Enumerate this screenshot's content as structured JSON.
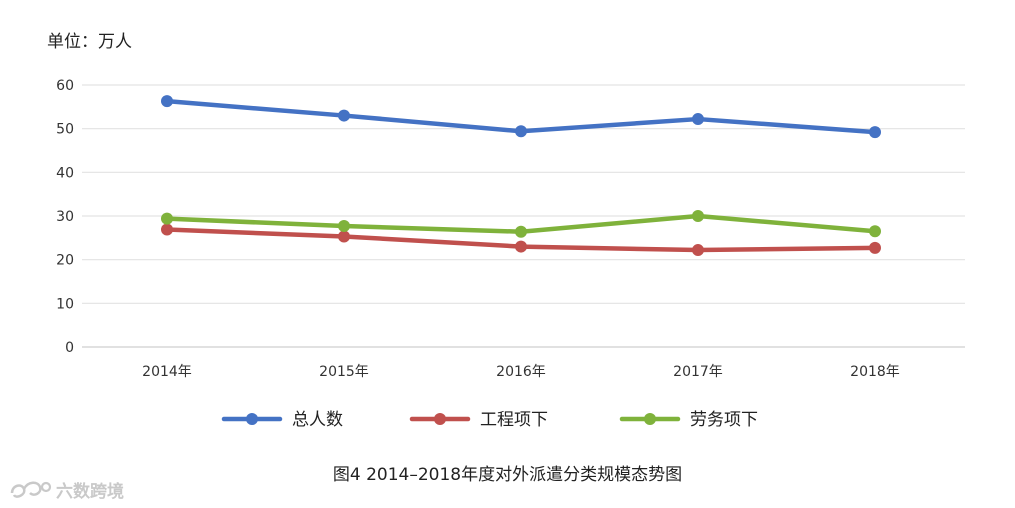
{
  "unit_label": "单位：万人",
  "caption": "图4    2014–2018年度对外派遣分类规模态势图",
  "watermark": {
    "text": "六数跨境",
    "icon": "logo-icon"
  },
  "chart_data": {
    "type": "line",
    "title": "",
    "xlabel": "",
    "ylabel": "",
    "categories": [
      "2014年",
      "2015年",
      "2016年",
      "2017年",
      "2018年"
    ],
    "ylim": [
      0,
      60
    ],
    "yticks": [
      0,
      10,
      20,
      30,
      40,
      50,
      60
    ],
    "grid": true,
    "legend_position": "bottom",
    "series": [
      {
        "name": "总人数",
        "color": "#4472c4",
        "values": [
          56.3,
          53.0,
          49.4,
          52.2,
          49.2
        ]
      },
      {
        "name": "工程项下",
        "color": "#c0504d",
        "values": [
          26.9,
          25.3,
          23.0,
          22.2,
          22.7
        ]
      },
      {
        "name": "劳务项下",
        "color": "#7fb23b",
        "values": [
          29.4,
          27.7,
          26.4,
          30.0,
          26.5
        ]
      }
    ]
  }
}
